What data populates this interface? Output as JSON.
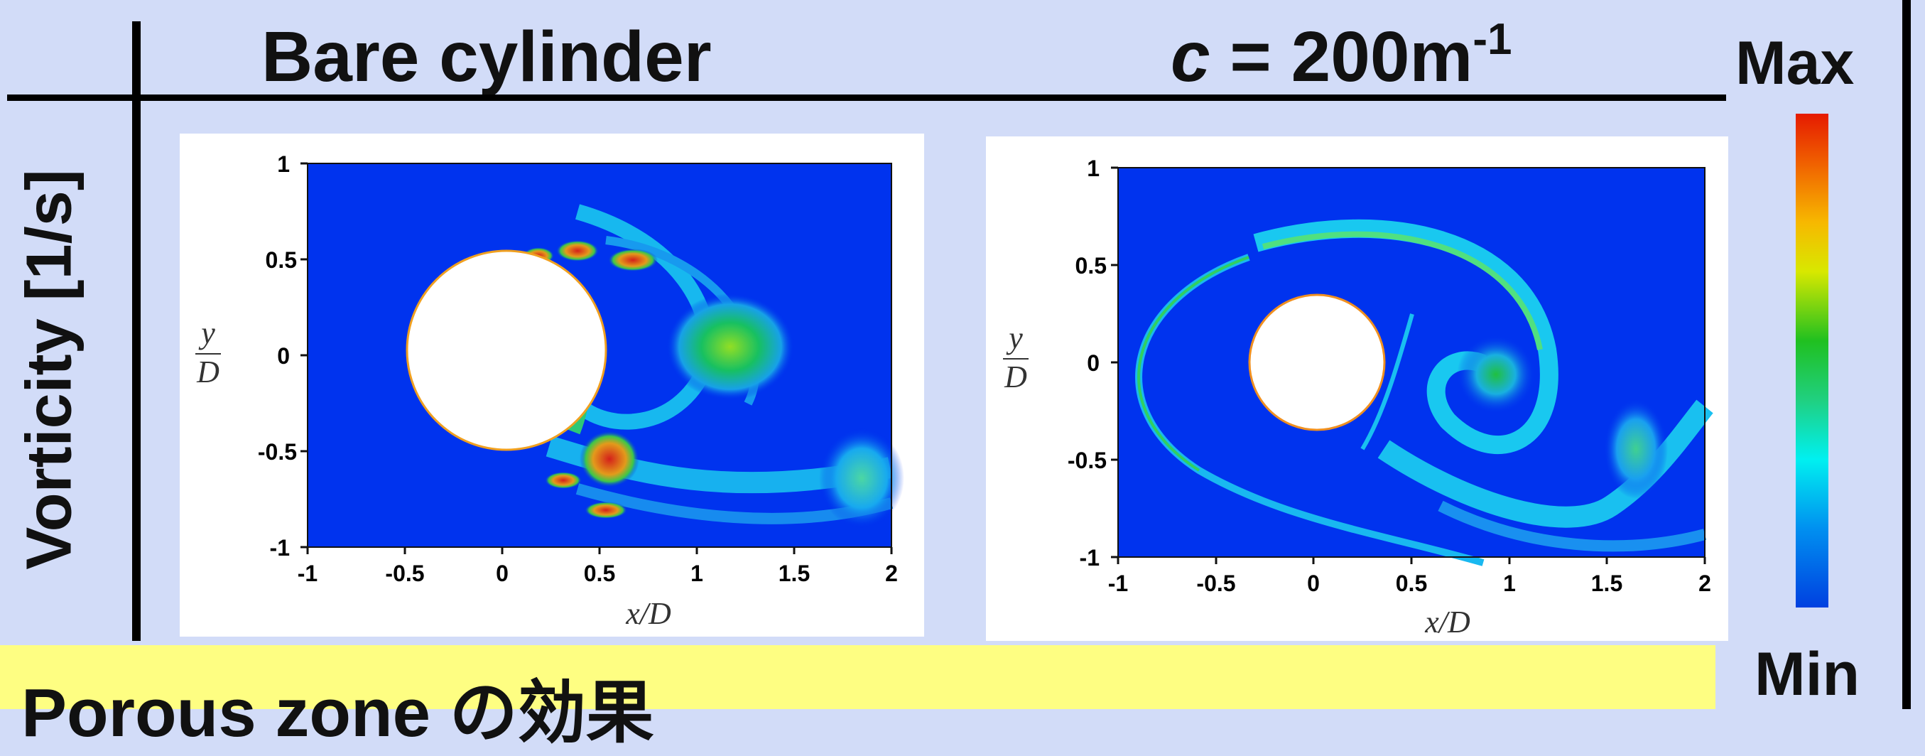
{
  "header": {
    "left_title": "Bare cylinder",
    "right_title_prefix": "c",
    "right_title_rest": " = 200m",
    "right_title_sup": "-1"
  },
  "row_label": "Vorticity [1/s]",
  "colorbar": {
    "max_label": "Max",
    "min_label": "Min"
  },
  "footer": {
    "text": "Porous zone の効果"
  },
  "panels": [
    {
      "x_ticks": [
        "-1",
        "-0.5",
        "0",
        "0.5",
        "1",
        "1.5",
        "2"
      ],
      "y_ticks": [
        "1",
        "0.5",
        "0",
        "-0.5",
        "-1"
      ],
      "x_axis_label": "x/D",
      "y_axis_label_num": "y",
      "y_axis_label_den": "D"
    },
    {
      "x_ticks": [
        "-1",
        "-0.5",
        "0",
        "0.5",
        "1",
        "1.5",
        "2"
      ],
      "y_ticks": [
        "1",
        "0.5",
        "0",
        "-0.5",
        "-1"
      ],
      "x_axis_label": "x/D",
      "y_axis_label_num": "y",
      "y_axis_label_den": "D"
    }
  ],
  "colors": {
    "field_blue": "#0033ee",
    "background": "#d2dcf8",
    "footer_bg": "#fefe82"
  }
}
